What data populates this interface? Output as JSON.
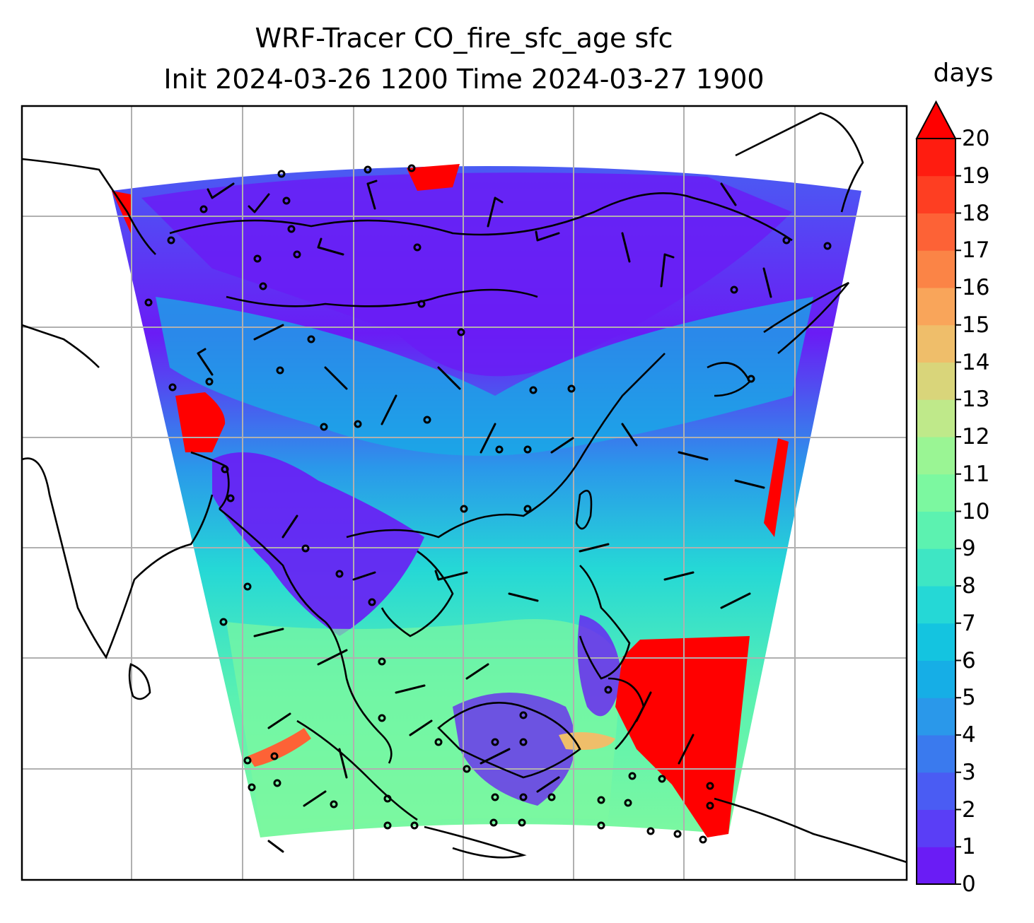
{
  "title": {
    "line1": "WRF-Tracer CO_fire_sfc_age sfc",
    "line2": "Init 2024-03-26 1200 Time 2024-03-27 1900"
  },
  "colorbar": {
    "unit": "days",
    "min": 0,
    "max": 20,
    "extend": "max",
    "ticks": [
      "0",
      "1",
      "2",
      "3",
      "4",
      "5",
      "6",
      "7",
      "8",
      "9",
      "10",
      "11",
      "12",
      "13",
      "14",
      "15",
      "16",
      "17",
      "18",
      "19",
      "20"
    ],
    "colors": [
      "#6a1cf5",
      "#5a3ef6",
      "#4a5cf3",
      "#3a7aee",
      "#2a98ea",
      "#16aee6",
      "#14c4e0",
      "#25d8d6",
      "#3ee6c4",
      "#5cf2b0",
      "#7cf8a0",
      "#9af594",
      "#bfe98a",
      "#d9d57a",
      "#efbe6a",
      "#f9a55a",
      "#fb8446",
      "#fd6236",
      "#fe3e22",
      "#ff1c10",
      "#ff0000"
    ]
  },
  "map": {
    "gridlines": true,
    "projection_note": "",
    "fields": "CO_fire_sfc_age"
  },
  "colors": {
    "frame": "#000000",
    "grid": "#b0b0b0",
    "coast": "#000000",
    "barb": "#000000"
  }
}
